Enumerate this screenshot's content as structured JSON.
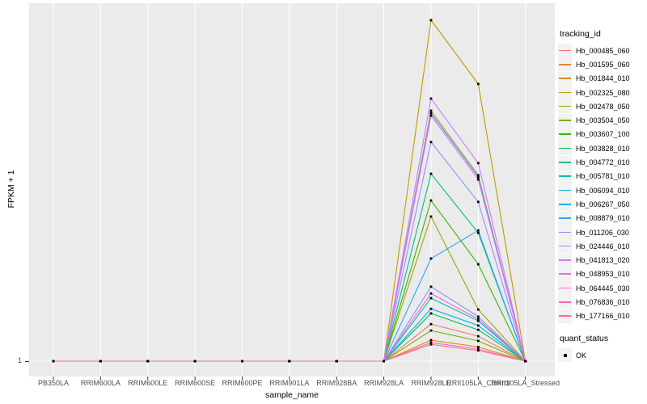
{
  "figure": {
    "y_tick_1": "1"
  },
  "legend": {
    "tracking_title": "tracking_id",
    "quant_title": "quant_status",
    "quant_items": [
      {
        "label": "OK"
      }
    ]
  },
  "colors": {
    "panel_bg": "#EBEBEB",
    "gridline": "#FFFFFF",
    "tick_mark": "#333333",
    "tick_text": "#4D4D4D",
    "point": "#000000",
    "legend_key_bg": "#F2F2F2"
  },
  "chart_data": {
    "type": "line",
    "title": "",
    "xlabel": "sample_name",
    "ylabel": "FPKM + 1",
    "x_categories": [
      "PB350LA",
      "RRIM600LA",
      "RRIM600LE",
      "RRIM600SE",
      "RRIM600PE",
      "RRIM901LA",
      "RRIM928BA",
      "RRIM928LA",
      "RRIM928LE",
      "RRII105LA_Control",
      "RRII105LA_Stressed"
    ],
    "y_tick_labels": [
      "1"
    ],
    "legend_position": "right",
    "grid": "vertical white major gridlines on grey panel; horizontal gridline at y=1",
    "value_scale": "relative height above the FPKM+1=1 baseline as a fraction of panel height; only the tick '1' is labeled on the y-axis",
    "marker": "small black square at every data point (quant_status OK)",
    "series": [
      {
        "name": "Hb_000485_060",
        "color": "#F8766D",
        "values": [
          0,
          0,
          0,
          0,
          0,
          0,
          0,
          0,
          0.104,
          0.07,
          0
        ]
      },
      {
        "name": "Hb_001595_060",
        "color": "#EA8331",
        "values": [
          0,
          0,
          0,
          0,
          0,
          0,
          0,
          0,
          0.703,
          0.522,
          0
        ]
      },
      {
        "name": "Hb_001844_010",
        "color": "#D89000",
        "values": [
          0,
          0,
          0,
          0,
          0,
          0,
          0,
          0,
          0.059,
          0.04,
          0
        ]
      },
      {
        "name": "Hb_002325_080",
        "color": "#C09B00",
        "values": [
          0,
          0,
          0,
          0,
          0,
          0,
          0,
          0,
          0.957,
          0.778,
          0
        ]
      },
      {
        "name": "Hb_002478_050",
        "color": "#A3A500",
        "values": [
          0,
          0,
          0,
          0,
          0,
          0,
          0,
          0,
          0.406,
          0.145,
          0
        ]
      },
      {
        "name": "Hb_003504_050",
        "color": "#7CAE00",
        "values": [
          0,
          0,
          0,
          0,
          0,
          0,
          0,
          0,
          0.086,
          0.057,
          0
        ]
      },
      {
        "name": "Hb_003607_100",
        "color": "#39B600",
        "values": [
          0,
          0,
          0,
          0,
          0,
          0,
          0,
          0,
          0.451,
          0.272,
          0
        ]
      },
      {
        "name": "Hb_003828_010",
        "color": "#00BB4E",
        "values": [
          0,
          0,
          0,
          0,
          0,
          0,
          0,
          0,
          0.134,
          0.088,
          0
        ]
      },
      {
        "name": "Hb_004772_010",
        "color": "#00C087",
        "values": [
          0,
          0,
          0,
          0,
          0,
          0,
          0,
          0,
          0.526,
          0.36,
          0
        ]
      },
      {
        "name": "Hb_005781_010",
        "color": "#00C0B2",
        "values": [
          0,
          0,
          0,
          0,
          0,
          0,
          0,
          0,
          0.177,
          0.113,
          0
        ]
      },
      {
        "name": "Hb_006094_010",
        "color": "#00BCD8",
        "values": [
          0,
          0,
          0,
          0,
          0,
          0,
          0,
          0,
          0.696,
          0.517,
          0
        ]
      },
      {
        "name": "Hb_006267_050",
        "color": "#00B0F6",
        "values": [
          0,
          0,
          0,
          0,
          0,
          0,
          0,
          0,
          0.147,
          0.1,
          0
        ]
      },
      {
        "name": "Hb_008879_010",
        "color": "#35A2FF",
        "values": [
          0,
          0,
          0,
          0,
          0,
          0,
          0,
          0,
          0.288,
          0.367,
          0
        ]
      },
      {
        "name": "Hb_011206_030",
        "color": "#7E96FF",
        "values": [
          0,
          0,
          0,
          0,
          0,
          0,
          0,
          0,
          0.209,
          0.125,
          0
        ]
      },
      {
        "name": "Hb_024446_010",
        "color": "#9590FF",
        "values": [
          0,
          0,
          0,
          0,
          0,
          0,
          0,
          0,
          0.615,
          0.447,
          0
        ]
      },
      {
        "name": "Hb_041813_020",
        "color": "#C77CFF",
        "values": [
          0,
          0,
          0,
          0,
          0,
          0,
          0,
          0,
          0.737,
          0.556,
          0
        ]
      },
      {
        "name": "Hb_048953_010",
        "color": "#E76BF3",
        "values": [
          0,
          0,
          0,
          0,
          0,
          0,
          0,
          0,
          0.689,
          0.51,
          0
        ]
      },
      {
        "name": "Hb_064445_030",
        "color": "#FA62DB",
        "values": [
          0,
          0,
          0,
          0,
          0,
          0,
          0,
          0,
          0.19,
          0.118,
          0
        ]
      },
      {
        "name": "Hb_076836_010",
        "color": "#FF62BC",
        "values": [
          0,
          0,
          0,
          0,
          0,
          0,
          0,
          0,
          0.052,
          0.034,
          0
        ]
      },
      {
        "name": "Hb_177166_010",
        "color": "#FF6A98",
        "values": [
          0,
          0,
          0,
          0,
          0,
          0,
          0,
          0,
          0.047,
          0.03,
          0
        ]
      }
    ],
    "quant_status": {
      "label": "OK"
    }
  }
}
